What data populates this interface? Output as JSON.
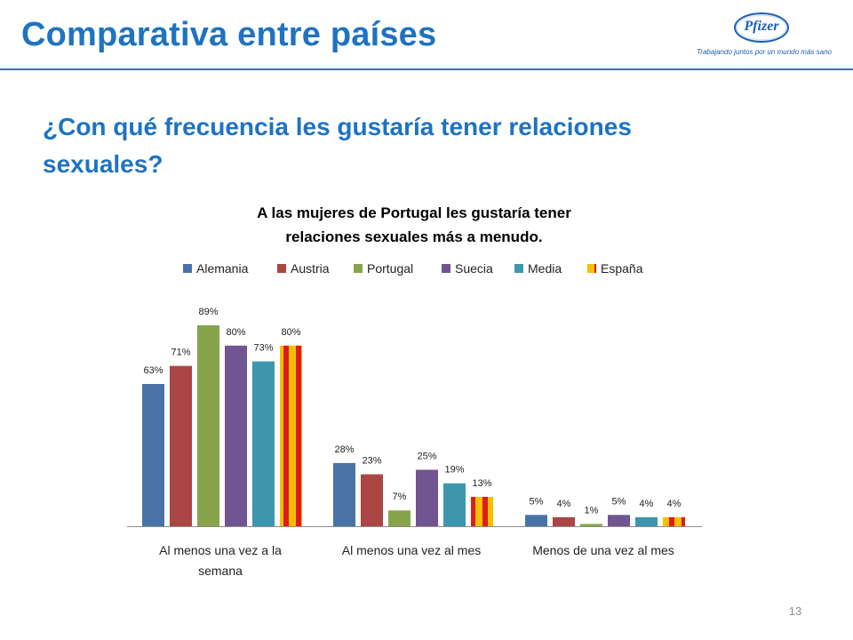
{
  "slide": {
    "title": "Comparativa entre países",
    "question": "¿Con qué frecuencia les gustaría tener relaciones sexuales?",
    "page_number": "13"
  },
  "logo": {
    "name": "Pfizer",
    "tagline": "Trabajando juntos por un mundo más sano"
  },
  "chart_data": {
    "type": "bar",
    "title": "A las mujeres de Portugal les gustaría tener relaciones sexuales más a menudo.",
    "title_lines": [
      "A las mujeres de Portugal les gustaría tener",
      "relaciones sexuales más a menudo."
    ],
    "categories": [
      "Al menos una vez a la semana",
      "Al menos una vez al mes",
      "Menos de una vez al mes"
    ],
    "category_lines": [
      [
        "Al menos una vez a la",
        "semana"
      ],
      [
        "Al menos una vez al mes"
      ],
      [
        "Menos de una vez al mes"
      ]
    ],
    "series": [
      {
        "name": "Alemania",
        "values": [
          63,
          28,
          5
        ],
        "labels": [
          "63%",
          "28%",
          "5%"
        ],
        "color": "#4a72a8"
      },
      {
        "name": "Austria",
        "values": [
          71,
          23,
          4
        ],
        "labels": [
          "71%",
          "23%",
          "4%"
        ],
        "color": "#aa4644"
      },
      {
        "name": "Portugal",
        "values": [
          89,
          7,
          1
        ],
        "labels": [
          "89%",
          "7%",
          "1%"
        ],
        "color": "#87a44b"
      },
      {
        "name": "Suecia",
        "values": [
          80,
          25,
          5
        ],
        "labels": [
          "80%",
          "25%",
          "5%"
        ],
        "color": "#705590"
      },
      {
        "name": "Media",
        "values": [
          73,
          19,
          4
        ],
        "labels": [
          "73%",
          "19%",
          "4%"
        ],
        "color": "#3d96ad"
      },
      {
        "name": "España",
        "values": [
          80,
          13,
          4
        ],
        "labels": [
          "80%",
          "13%",
          "4%"
        ],
        "color": "#f6c000",
        "stripe_color": "#e01b1b",
        "pattern": "spain-flag"
      }
    ],
    "ylim": [
      0,
      100
    ],
    "legend_position": "top",
    "grid": false,
    "data_labels": true
  }
}
